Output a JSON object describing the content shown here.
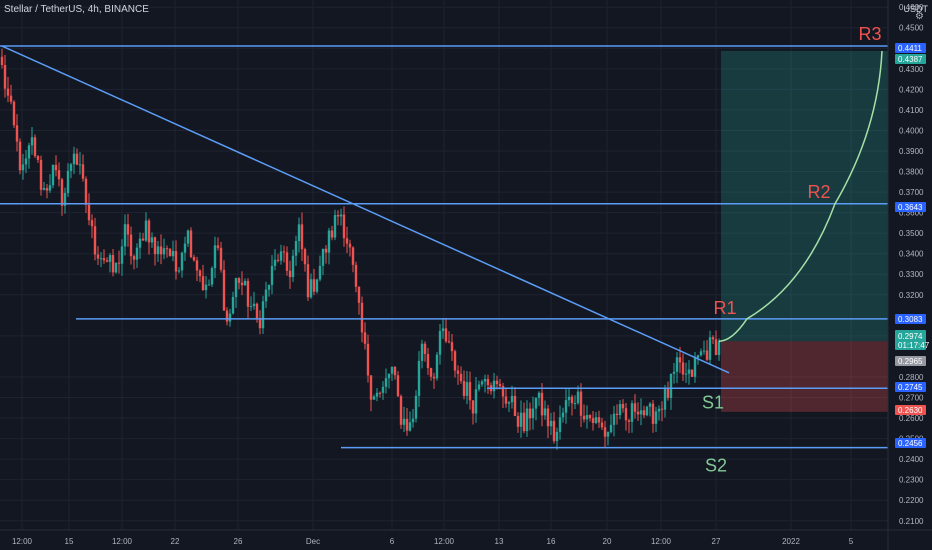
{
  "header": {
    "title": "Stellar / TetherUS, 4h, BINANCE",
    "currency": "USDT"
  },
  "chart_data": {
    "type": "candlestick",
    "y_axis": {
      "range": [
        0.2055,
        0.4635
      ],
      "ticks": [
        "0.4600",
        "0.4500",
        "0.4400",
        "0.4300",
        "0.4200",
        "0.4100",
        "0.4000",
        "0.3900",
        "0.3800",
        "0.3700",
        "0.3600",
        "0.3500",
        "0.3400",
        "0.3300",
        "0.3200",
        "0.3000",
        "0.2800",
        "0.2700",
        "0.2600",
        "0.2500",
        "0.2400",
        "0.2300",
        "0.2200",
        "0.2100"
      ]
    },
    "x_axis": {
      "ticks": [
        "12:00",
        "15",
        "12:00",
        "22",
        "26",
        "Dec",
        "6",
        "12:00",
        "13",
        "16",
        "20",
        "12:00",
        "27",
        "2022",
        "5"
      ]
    },
    "price_labels": [
      {
        "value": "0.4411",
        "color": "#2962ff"
      },
      {
        "value": "0.4387",
        "color": "#26a69a"
      },
      {
        "value": "0.3643",
        "color": "#2962ff"
      },
      {
        "value": "0.3083",
        "color": "#2962ff"
      },
      {
        "value": "0.2974",
        "sub": "01:17:47",
        "color": "#26a69a"
      },
      {
        "value": "0.2965",
        "color": "#9598a1"
      },
      {
        "value": "0.2745",
        "color": "#2962ff"
      },
      {
        "value": "0.2630",
        "color": "#ef5350"
      },
      {
        "value": "0.2456",
        "color": "#2962ff"
      }
    ],
    "levels": [
      {
        "name": "R3",
        "value": 0.4411
      },
      {
        "name": "R2",
        "value": 0.3643
      },
      {
        "name": "R1",
        "value": 0.3083
      },
      {
        "name": "S1",
        "value": 0.2745
      },
      {
        "name": "S2",
        "value": 0.2456
      }
    ],
    "trendline": {
      "from": 0.4411,
      "to": 0.282
    },
    "position": {
      "target": 0.4387,
      "entry": 0.2974,
      "stop": 0.263
    },
    "annotations": [
      {
        "text": "R3",
        "color": "#ef5350"
      },
      {
        "text": "R2",
        "color": "#ef5350"
      },
      {
        "text": "R1",
        "color": "#ef5350"
      },
      {
        "text": "S1",
        "color": "#81c995"
      },
      {
        "text": "S2",
        "color": "#81c995"
      }
    ],
    "price_anchors": [
      0.43,
      0.405,
      0.378,
      0.395,
      0.37,
      0.38,
      0.366,
      0.392,
      0.37,
      0.344,
      0.338,
      0.33,
      0.35,
      0.335,
      0.356,
      0.34,
      0.345,
      0.332,
      0.352,
      0.335,
      0.32,
      0.345,
      0.305,
      0.33,
      0.318,
      0.306,
      0.325,
      0.34,
      0.33,
      0.35,
      0.32,
      0.334,
      0.348,
      0.362,
      0.34,
      0.305,
      0.275,
      0.27,
      0.285,
      0.26,
      0.255,
      0.298,
      0.28,
      0.302,
      0.288,
      0.276,
      0.268,
      0.285,
      0.275,
      0.272,
      0.264,
      0.255,
      0.27,
      0.262,
      0.25,
      0.266,
      0.272,
      0.262,
      0.258,
      0.252,
      0.264,
      0.257,
      0.268,
      0.26,
      0.265,
      0.272,
      0.285,
      0.278,
      0.29,
      0.294,
      0.2974
    ],
    "colors": {
      "up": "#26a69a",
      "down": "#ef5350",
      "line": "#5b9cf6",
      "curve": "#a5e0a5"
    }
  }
}
